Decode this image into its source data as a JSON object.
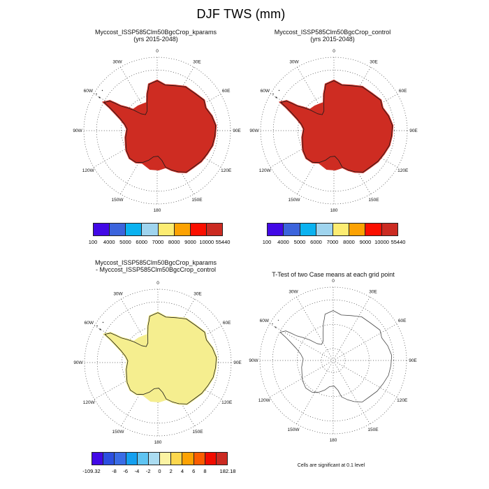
{
  "title": "DJF TWS (mm)",
  "panels": [
    {
      "title_lines": [
        "Myccost_ISSP585Clm50BgcCrop_kparams",
        "(yrs 2015-2048)"
      ],
      "fill": "#ce2c22",
      "coast": "#1a1a1a",
      "colorbar": "tws",
      "depicted": "entire Antarctic continent shaded in the highest color band"
    },
    {
      "title_lines": [
        "Myccost_ISSP585Clm50BgcCrop_control",
        "(yrs 2015-2048)"
      ],
      "fill": "#ce2c22",
      "coast": "#1a1a1a",
      "colorbar": "tws",
      "depicted": "entire Antarctic continent shaded in the highest color band"
    },
    {
      "title_lines": [
        "Myccost_ISSP585Clm50BgcCrop_kparams",
        "- Myccost_ISSP585Clm50BgcCrop_control"
      ],
      "fill": "#f5ee8f",
      "coast": "#1a1a1a",
      "colorbar": "diff",
      "depicted": "entire Antarctic continent shaded pale yellow (0 to 2 band)"
    },
    {
      "title_lines": [
        "T-Test of two Case means at each grid point"
      ],
      "fill": "none",
      "coast": "#4a4a4a",
      "colorbar": null,
      "footnote": "Cells are significant at 0.1 level",
      "depicted": "coastline outline only, no shaded cells"
    }
  ],
  "map": {
    "projection": "south polar stereographic",
    "meridian_labels": [
      "0",
      "30E",
      "60E",
      "90E",
      "120E",
      "150E",
      "180",
      "150W",
      "120W",
      "90W",
      "60W",
      "30W"
    ]
  },
  "colorbars": {
    "tws": {
      "colors": [
        "#4209e6",
        "#3c64dc",
        "#0bb2f0",
        "#9fd4ee",
        "#fcec72",
        "#fca203",
        "#fb0f00",
        "#cb2b22"
      ],
      "edge_labels": [
        "100",
        "4000",
        "5000",
        "6000",
        "7000",
        "8000",
        "9000",
        "10000",
        "55440"
      ]
    },
    "diff": {
      "colors": [
        "#4209e6",
        "#2c4fe0",
        "#3a6ce6",
        "#15a0f0",
        "#5fc4f2",
        "#abdcf1",
        "#fbf3a3",
        "#fcd74e",
        "#fca203",
        "#fb5d00",
        "#f20c00",
        "#cb2b22"
      ],
      "edge_labels": [
        "-109.32",
        "",
        "-8",
        "-6",
        "-4",
        "-2",
        "0",
        "2",
        "4",
        "6",
        "8",
        "",
        "182.18"
      ]
    }
  },
  "chart_data": [
    {
      "type": "heatmap",
      "title": "Myccost_ISSP585Clm50BgcCrop_kparams (yrs 2015-2048)",
      "region": "Antarctica",
      "field": "DJF TWS (mm)",
      "level_labels": [
        "100",
        "4000",
        "5000",
        "6000",
        "7000",
        "8000",
        "9000",
        "10000",
        "55440"
      ],
      "legend_position": "below",
      "grid": "30-degree meridians, dotted",
      "values_summary": "uniform high values over whole continent (top red band, 10000-55440 mm)"
    },
    {
      "type": "heatmap",
      "title": "Myccost_ISSP585Clm50BgcCrop_control (yrs 2015-2048)",
      "region": "Antarctica",
      "field": "DJF TWS (mm)",
      "level_labels": [
        "100",
        "4000",
        "5000",
        "6000",
        "7000",
        "8000",
        "9000",
        "10000",
        "55440"
      ],
      "legend_position": "below",
      "grid": "30-degree meridians, dotted",
      "values_summary": "uniform high values over whole continent (top red band, 10000-55440 mm)"
    },
    {
      "type": "heatmap",
      "title": "Myccost_ISSP585Clm50BgcCrop_kparams - Myccost_ISSP585Clm50BgcCrop_control",
      "region": "Antarctica",
      "field": "DJF TWS difference (mm)",
      "level_labels": [
        "-109.32",
        "-8",
        "-6",
        "-4",
        "-2",
        "0",
        "2",
        "4",
        "6",
        "8",
        "182.18"
      ],
      "legend_position": "below",
      "grid": "30-degree meridians, dotted",
      "values_summary": "difference near zero everywhere: continent filled with pale-yellow 0-to-2 band; data min -109.32, max 182.18"
    },
    {
      "type": "heatmap",
      "title": "T-Test of two Case means at each grid point",
      "region": "Antarctica",
      "annotation": "Cells are significant at 0.1 level",
      "values_summary": "no significant cells shaded; Antarctic coastline outline only"
    }
  ]
}
